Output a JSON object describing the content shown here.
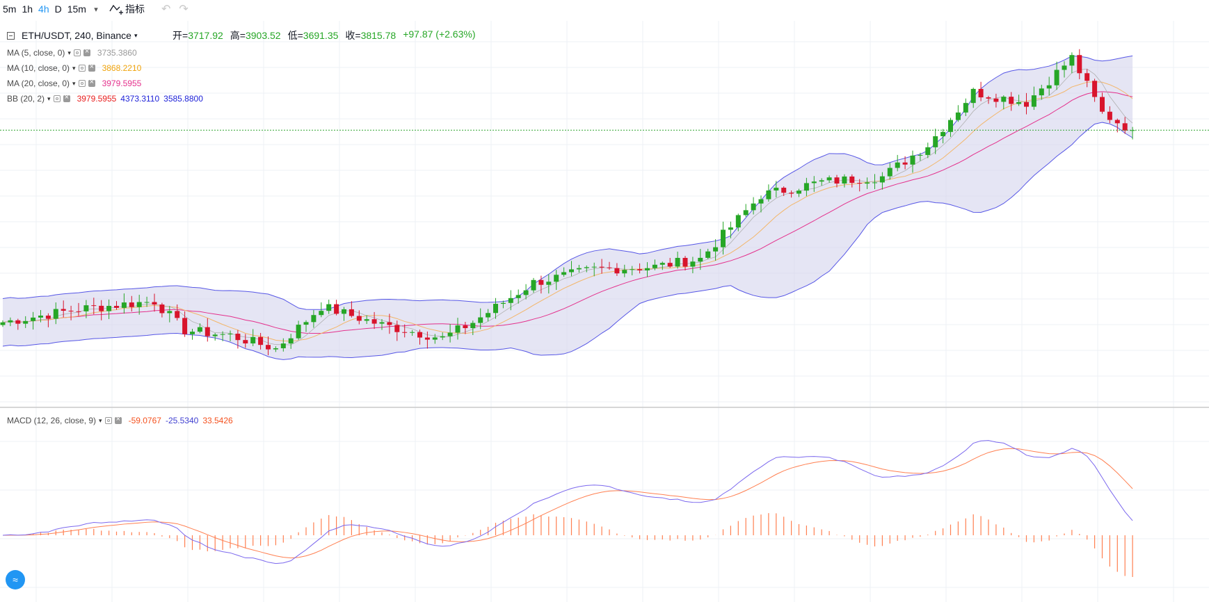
{
  "toolbar": {
    "intervals": [
      "5m",
      "1h",
      "4h",
      "D",
      "15m"
    ],
    "active_interval": "4h",
    "indicators_label": "指标",
    "undo_icon": "undo-icon",
    "redo_icon": "redo-icon"
  },
  "symbol": {
    "title": "ETH/USDT, 240, Binance",
    "open_label": "开",
    "open": "3717.92",
    "high_label": "高",
    "high": "3903.52",
    "low_label": "低",
    "low": "3691.35",
    "close_label": "收",
    "close": "3815.78",
    "change": "+97.87 (+2.63%)"
  },
  "indicators": [
    {
      "name": "MA (5, close, 0)",
      "values": [
        "3735.3860"
      ],
      "colors": [
        "#999999"
      ]
    },
    {
      "name": "MA (10, close, 0)",
      "values": [
        "3868.2210"
      ],
      "colors": [
        "#f0a30a"
      ]
    },
    {
      "name": "MA (20, close, 0)",
      "values": [
        "3979.5955"
      ],
      "colors": [
        "#e4308c"
      ]
    },
    {
      "name": "BB (20, 2)",
      "values": [
        "3979.5955",
        "4373.3110",
        "3585.8800"
      ],
      "colors": [
        "#e81d1d",
        "#1e22d8",
        "#1e22d8"
      ]
    }
  ],
  "macd": {
    "name": "MACD (12, 26, close, 9)",
    "values": [
      "-59.0767",
      "-25.5340",
      "33.5426"
    ],
    "colors": [
      "#f4511e",
      "#3f3fd0",
      "#f4511e"
    ]
  },
  "colors": {
    "up": "#26a626",
    "down": "#d8142c",
    "band_fill": "#d4d4ec",
    "band_line": "#5656e6",
    "ma5": "#b0b0b0",
    "ma10": "#f3b66a",
    "ma20": "#e4308c",
    "macd": "#7b68ee",
    "signal": "#ff7f50",
    "hist": "#ff7f50",
    "grid": "#eef1f6",
    "price_line": "#2ea32e"
  },
  "chart_data": {
    "type": "candlestick",
    "symbol": "ETH/USDT",
    "interval": "240",
    "exchange": "Binance",
    "last_price": 3815.78,
    "n_candles": 150,
    "indicators": [
      "MA 5",
      "MA 10",
      "MA 20",
      "Bollinger Bands (20, 2)",
      "MACD (12, 26, 9)"
    ],
    "grid": true
  }
}
